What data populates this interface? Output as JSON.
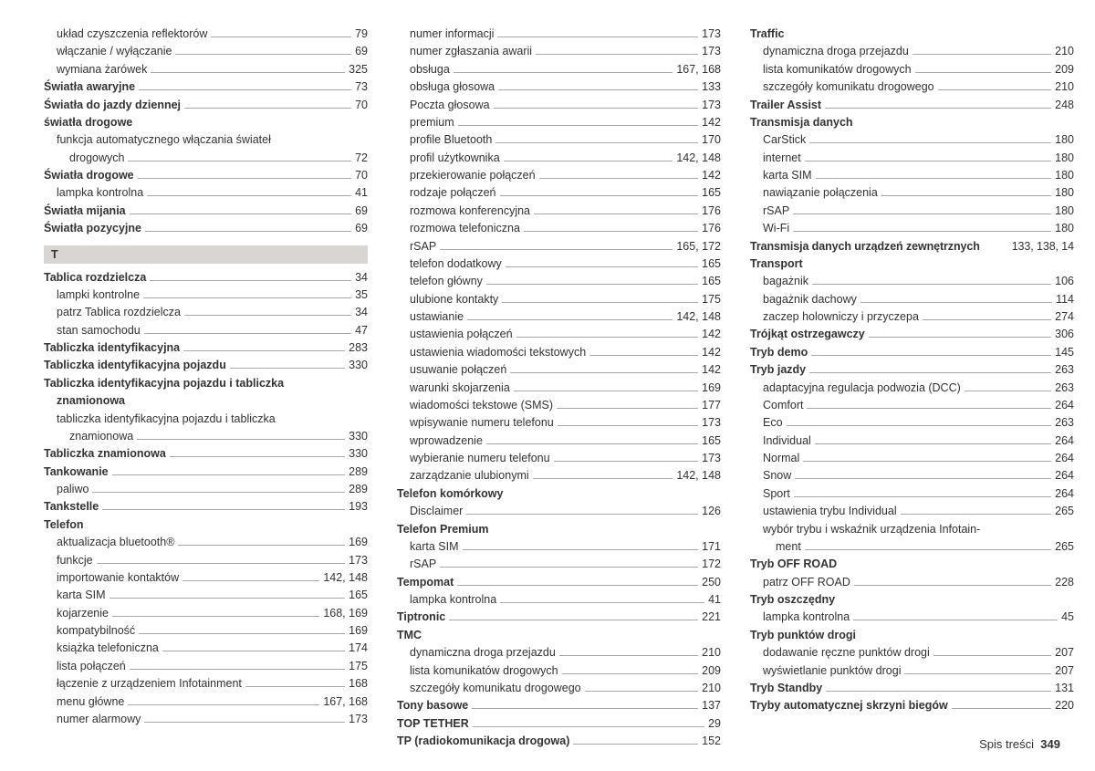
{
  "footer": {
    "label": "Spis treści",
    "page": "349"
  },
  "sectionT": "T",
  "col1": [
    {
      "t": "układ czyszczenia reflektorów",
      "p": "79",
      "cls": "sub"
    },
    {
      "t": "włączanie / wyłączanie",
      "p": "69",
      "cls": "sub"
    },
    {
      "t": "wymiana żarówek",
      "p": "325",
      "cls": "sub"
    },
    {
      "t": "Światła awaryjne",
      "p": "73",
      "cls": "bold"
    },
    {
      "t": "Światła do jazdy dziennej",
      "p": "70",
      "cls": "bold"
    },
    {
      "t": "światła drogowe",
      "p": "",
      "cls": "bold no-page"
    },
    {
      "t": "funkcja automatycznego włączania świateł",
      "p": "",
      "cls": "sub no-page"
    },
    {
      "t": "drogowych",
      "p": "72",
      "cls": "sub",
      "wrap": true
    },
    {
      "t": "Światła drogowe",
      "p": "70",
      "cls": "bold"
    },
    {
      "t": "lampka kontrolna",
      "p": "41",
      "cls": "sub"
    },
    {
      "t": "Światła mijania",
      "p": "69",
      "cls": "bold"
    },
    {
      "t": "Światła pozycyjne",
      "p": "69",
      "cls": "bold"
    },
    {
      "t": "__SECTION_T__"
    },
    {
      "t": "Tablica rozdzielcza",
      "p": "34",
      "cls": "bold"
    },
    {
      "t": "lampki kontrolne",
      "p": "35",
      "cls": "sub"
    },
    {
      "t": "patrz Tablica rozdzielcza",
      "p": "34",
      "cls": "sub"
    },
    {
      "t": "stan samochodu",
      "p": "47",
      "cls": "sub"
    },
    {
      "t": "Tabliczka identyfikacyjna",
      "p": "283",
      "cls": "bold"
    },
    {
      "t": "Tabliczka identyfikacyjna pojazdu",
      "p": "330",
      "cls": "bold"
    },
    {
      "t": "Tabliczka identyfikacyjna pojazdu i tabliczka",
      "p": "",
      "cls": "bold no-page"
    },
    {
      "t": "znamionowa",
      "p": "",
      "cls": "bold no-page",
      "wrap2": true
    },
    {
      "t": "tabliczka identyfikacyjna pojazdu i tabliczka",
      "p": "",
      "cls": "sub no-page"
    },
    {
      "t": "znamionowa",
      "p": "330",
      "cls": "sub",
      "wrap": true
    },
    {
      "t": "Tabliczka znamionowa",
      "p": "330",
      "cls": "bold"
    },
    {
      "t": "Tankowanie",
      "p": "289",
      "cls": "bold"
    },
    {
      "t": "paliwo",
      "p": "289",
      "cls": "sub"
    },
    {
      "t": "Tankstelle",
      "p": "193",
      "cls": "bold"
    },
    {
      "t": "Telefon",
      "p": "",
      "cls": "bold no-page"
    },
    {
      "t": "aktualizacja bluetooth®",
      "p": "169",
      "cls": "sub"
    },
    {
      "t": "funkcje",
      "p": "173",
      "cls": "sub"
    },
    {
      "t": "importowanie kontaktów",
      "p": "142, 148",
      "cls": "sub"
    },
    {
      "t": "karta SIM",
      "p": "165",
      "cls": "sub"
    },
    {
      "t": "kojarzenie",
      "p": "168, 169",
      "cls": "sub"
    },
    {
      "t": "kompatybilność",
      "p": "169",
      "cls": "sub"
    },
    {
      "t": "książka telefoniczna",
      "p": "174",
      "cls": "sub"
    },
    {
      "t": "lista połączeń",
      "p": "175",
      "cls": "sub"
    },
    {
      "t": "łączenie z urządzeniem Infotainment",
      "p": "168",
      "cls": "sub"
    },
    {
      "t": "menu główne",
      "p": "167, 168",
      "cls": "sub"
    },
    {
      "t": "numer alarmowy",
      "p": "173",
      "cls": "sub"
    }
  ],
  "col2": [
    {
      "t": "numer informacji",
      "p": "173",
      "cls": "sub"
    },
    {
      "t": "numer zgłaszania awarii",
      "p": "173",
      "cls": "sub"
    },
    {
      "t": "obsługa",
      "p": "167, 168",
      "cls": "sub"
    },
    {
      "t": "obsługa głosowa",
      "p": "133",
      "cls": "sub"
    },
    {
      "t": "Poczta głosowa",
      "p": "173",
      "cls": "sub"
    },
    {
      "t": "premium",
      "p": "142",
      "cls": "sub"
    },
    {
      "t": "profile Bluetooth",
      "p": "170",
      "cls": "sub"
    },
    {
      "t": "profil użytkownika",
      "p": "142, 148",
      "cls": "sub"
    },
    {
      "t": "przekierowanie połączeń",
      "p": "142",
      "cls": "sub"
    },
    {
      "t": "rodzaje połączeń",
      "p": "165",
      "cls": "sub"
    },
    {
      "t": "rozmowa konferencyjna",
      "p": "176",
      "cls": "sub"
    },
    {
      "t": "rozmowa telefoniczna",
      "p": "176",
      "cls": "sub"
    },
    {
      "t": "rSAP",
      "p": "165, 172",
      "cls": "sub"
    },
    {
      "t": "telefon dodatkowy",
      "p": "165",
      "cls": "sub"
    },
    {
      "t": "telefon główny",
      "p": "165",
      "cls": "sub"
    },
    {
      "t": "ulubione kontakty",
      "p": "175",
      "cls": "sub"
    },
    {
      "t": "ustawianie",
      "p": "142, 148",
      "cls": "sub"
    },
    {
      "t": "ustawienia połączeń",
      "p": "142",
      "cls": "sub"
    },
    {
      "t": "ustawienia wiadomości tekstowych",
      "p": "142",
      "cls": "sub"
    },
    {
      "t": "usuwanie połączeń",
      "p": "142",
      "cls": "sub"
    },
    {
      "t": "warunki skojarzenia",
      "p": "169",
      "cls": "sub"
    },
    {
      "t": "wiadomości tekstowe (SMS)",
      "p": "177",
      "cls": "sub"
    },
    {
      "t": "wpisywanie numeru telefonu",
      "p": "173",
      "cls": "sub"
    },
    {
      "t": "wprowadzenie",
      "p": "165",
      "cls": "sub"
    },
    {
      "t": "wybieranie numeru telefonu",
      "p": "173",
      "cls": "sub"
    },
    {
      "t": "zarządzanie ulubionymi",
      "p": "142, 148",
      "cls": "sub"
    },
    {
      "t": "Telefon komórkowy",
      "p": "",
      "cls": "bold no-page"
    },
    {
      "t": "Disclaimer",
      "p": "126",
      "cls": "sub"
    },
    {
      "t": "Telefon Premium",
      "p": "",
      "cls": "bold no-page"
    },
    {
      "t": "karta SIM",
      "p": "171",
      "cls": "sub"
    },
    {
      "t": "rSAP",
      "p": "172",
      "cls": "sub"
    },
    {
      "t": "Tempomat",
      "p": "250",
      "cls": "bold"
    },
    {
      "t": "lampka kontrolna",
      "p": "41",
      "cls": "sub"
    },
    {
      "t": "Tiptronic",
      "p": "221",
      "cls": "bold"
    },
    {
      "t": "TMC",
      "p": "",
      "cls": "bold no-page"
    },
    {
      "t": "dynamiczna droga przejazdu",
      "p": "210",
      "cls": "sub"
    },
    {
      "t": "lista komunikatów drogowych",
      "p": "209",
      "cls": "sub"
    },
    {
      "t": "szczegóły komunikatu drogowego",
      "p": "210",
      "cls": "sub"
    },
    {
      "t": "Tony basowe",
      "p": "137",
      "cls": "bold"
    },
    {
      "t": "TOP TETHER",
      "p": "29",
      "cls": "bold"
    },
    {
      "t": "TP (radiokomunikacja drogowa)",
      "p": "152",
      "cls": "bold"
    }
  ],
  "col3": [
    {
      "t": "Traffic",
      "p": "",
      "cls": "bold no-page"
    },
    {
      "t": "dynamiczna droga przejazdu",
      "p": "210",
      "cls": "sub"
    },
    {
      "t": "lista komunikatów drogowych",
      "p": "209",
      "cls": "sub"
    },
    {
      "t": "szczegóły komunikatu drogowego",
      "p": "210",
      "cls": "sub"
    },
    {
      "t": "Trailer Assist",
      "p": "248",
      "cls": "bold"
    },
    {
      "t": "Transmisja danych",
      "p": "",
      "cls": "bold no-page"
    },
    {
      "t": "CarStick",
      "p": "180",
      "cls": "sub"
    },
    {
      "t": "internet",
      "p": "180",
      "cls": "sub"
    },
    {
      "t": "karta SIM",
      "p": "180",
      "cls": "sub"
    },
    {
      "t": "nawiązanie połączenia",
      "p": "180",
      "cls": "sub"
    },
    {
      "t": "rSAP",
      "p": "180",
      "cls": "sub"
    },
    {
      "t": "Wi-Fi",
      "p": "180",
      "cls": "sub"
    },
    {
      "t": "Transmisja danych urządzeń zewnętrznych",
      "p": "133, 138, 14",
      "cls": "bold",
      "tight": true
    },
    {
      "t": "Transport",
      "p": "",
      "cls": "bold no-page"
    },
    {
      "t": "bagażnik",
      "p": "106",
      "cls": "sub"
    },
    {
      "t": "bagażnik dachowy",
      "p": "114",
      "cls": "sub"
    },
    {
      "t": "zaczep holowniczy i przyczepa",
      "p": "274",
      "cls": "sub"
    },
    {
      "t": "Trójkąt ostrzegawczy",
      "p": "306",
      "cls": "bold"
    },
    {
      "t": "Tryb demo",
      "p": "145",
      "cls": "bold"
    },
    {
      "t": "Tryb jazdy",
      "p": "263",
      "cls": "bold"
    },
    {
      "t": "adaptacyjna regulacja podwozia (DCC)",
      "p": "263",
      "cls": "sub"
    },
    {
      "t": "Comfort",
      "p": "264",
      "cls": "sub"
    },
    {
      "t": "Eco",
      "p": "263",
      "cls": "sub"
    },
    {
      "t": "Individual",
      "p": "264",
      "cls": "sub"
    },
    {
      "t": "Normal",
      "p": "264",
      "cls": "sub"
    },
    {
      "t": "Snow",
      "p": "264",
      "cls": "sub"
    },
    {
      "t": "Sport",
      "p": "264",
      "cls": "sub"
    },
    {
      "t": "ustawienia trybu Individual",
      "p": "265",
      "cls": "sub"
    },
    {
      "t": "wybór trybu i wskaźnik urządzenia Infotain-",
      "p": "",
      "cls": "sub no-page"
    },
    {
      "t": "ment",
      "p": "265",
      "cls": "sub",
      "wrap": true
    },
    {
      "t": "Tryb OFF ROAD",
      "p": "",
      "cls": "bold no-page"
    },
    {
      "t": "patrz OFF ROAD",
      "p": "228",
      "cls": "sub"
    },
    {
      "t": "Tryb oszczędny",
      "p": "",
      "cls": "bold no-page"
    },
    {
      "t": "lampka kontrolna",
      "p": "45",
      "cls": "sub"
    },
    {
      "t": "Tryb punktów drogi",
      "p": "",
      "cls": "bold no-page"
    },
    {
      "t": "dodawanie ręczne punktów drogi",
      "p": "207",
      "cls": "sub"
    },
    {
      "t": "wyświetlanie punktów drogi",
      "p": "207",
      "cls": "sub"
    },
    {
      "t": "Tryb Standby",
      "p": "131",
      "cls": "bold"
    },
    {
      "t": "Tryby automatycznej skrzyni biegów",
      "p": "220",
      "cls": "bold"
    }
  ]
}
